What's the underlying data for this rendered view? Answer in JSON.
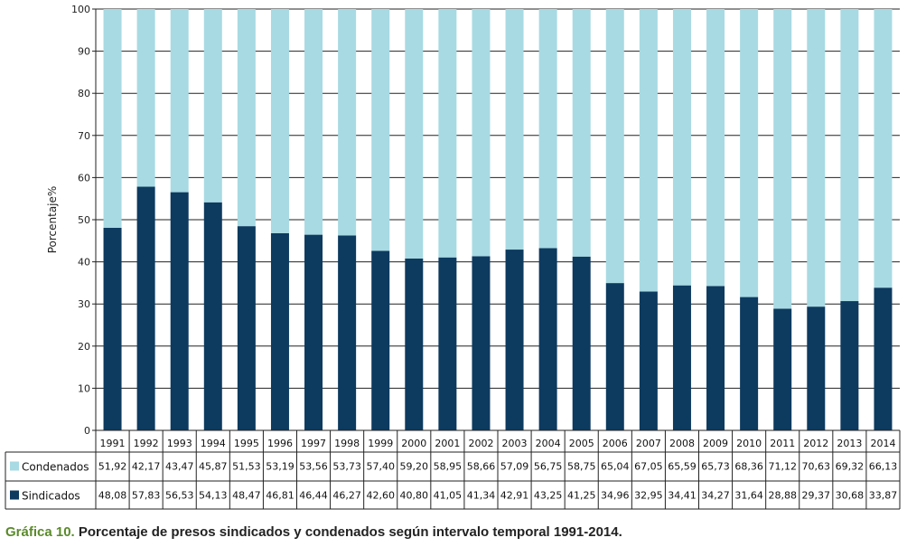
{
  "chart_data": {
    "type": "bar",
    "stacked": true,
    "title": "",
    "xlabel": "",
    "ylabel": "Porcentaje%",
    "ylim": [
      0,
      100
    ],
    "yticks": [
      0,
      10,
      20,
      30,
      40,
      50,
      60,
      70,
      80,
      90,
      100
    ],
    "grid": true,
    "legend": "table-left",
    "categories": [
      "1991",
      "1992",
      "1993",
      "1994",
      "1995",
      "1996",
      "1997",
      "1998",
      "1999",
      "2000",
      "2001",
      "2002",
      "2003",
      "2004",
      "2005",
      "2006",
      "2007",
      "2008",
      "2009",
      "2010",
      "2011",
      "2012",
      "2013",
      "2014"
    ],
    "series": [
      {
        "name": "Condenados",
        "color": "#a8dae3",
        "values": [
          51.92,
          42.17,
          43.47,
          45.87,
          51.53,
          53.19,
          53.56,
          53.73,
          57.4,
          59.2,
          58.95,
          58.66,
          57.09,
          56.75,
          58.75,
          65.04,
          67.05,
          65.59,
          65.73,
          68.36,
          71.12,
          70.63,
          69.32,
          66.13
        ],
        "labels": [
          "51,92",
          "42,17",
          "43,47",
          "45,87",
          "51,53",
          "53,19",
          "53,56",
          "53,73",
          "57,40",
          "59,20",
          "58,95",
          "58,66",
          "57,09",
          "56,75",
          "58,75",
          "65,04",
          "67,05",
          "65,59",
          "65,73",
          "68,36",
          "71,12",
          "70,63",
          "69,32",
          "66,13"
        ]
      },
      {
        "name": "Sindicados",
        "color": "#0d3a5f",
        "values": [
          48.08,
          57.83,
          56.53,
          54.13,
          48.47,
          46.81,
          46.44,
          46.27,
          42.6,
          40.8,
          41.05,
          41.34,
          42.91,
          43.25,
          41.25,
          34.96,
          32.95,
          34.41,
          34.27,
          31.64,
          28.88,
          29.37,
          30.68,
          33.87
        ],
        "labels": [
          "48,08",
          "57,83",
          "56,53",
          "54,13",
          "48,47",
          "46,81",
          "46,44",
          "46,27",
          "42,60",
          "40,80",
          "41,05",
          "41,34",
          "42,91",
          "43,25",
          "41,25",
          "34,96",
          "32,95",
          "34,41",
          "34,27",
          "31,64",
          "28,88",
          "29,37",
          "30,68",
          "33,87"
        ]
      }
    ]
  },
  "caption": {
    "lead": "Gráfica 10.",
    "text": " Porcentaje de presos sindicados y condenados según intervalo temporal 1991-2014."
  }
}
